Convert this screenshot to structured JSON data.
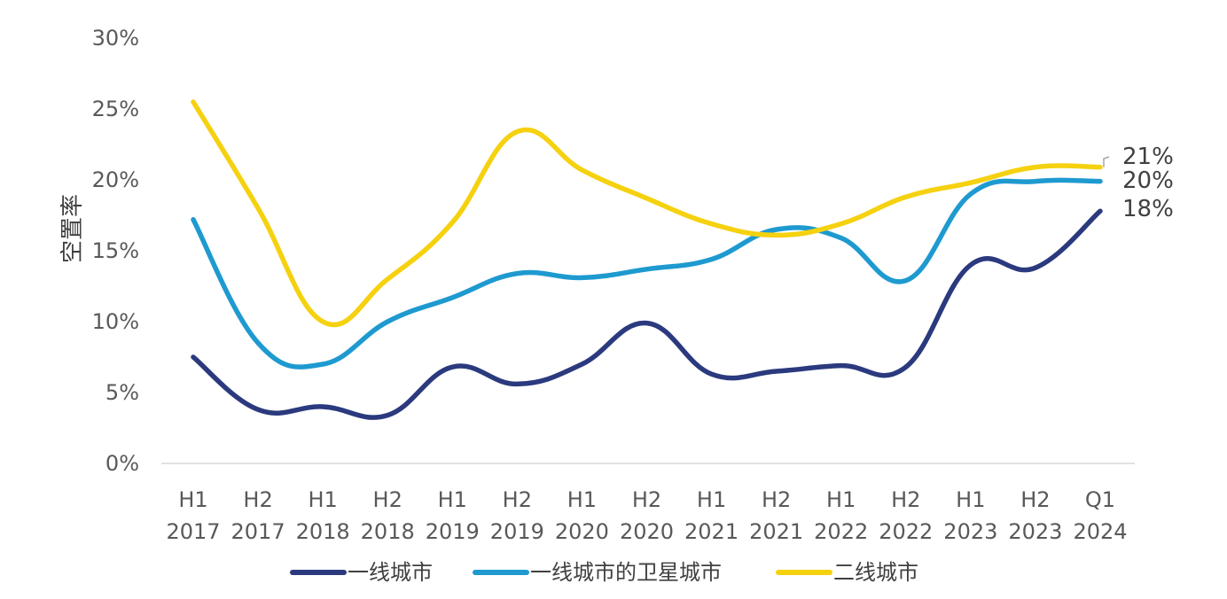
{
  "chart_data": {
    "type": "line",
    "title": "",
    "ylabel": "空置率",
    "xlabel": "",
    "ylim": [
      0,
      30
    ],
    "yticks": [
      0,
      5,
      10,
      15,
      20,
      25,
      30
    ],
    "ytick_labels": [
      "0%",
      "5%",
      "10%",
      "15%",
      "20%",
      "25%",
      "30%"
    ],
    "categories": [
      [
        "H1",
        "2017"
      ],
      [
        "H2",
        "2017"
      ],
      [
        "H1",
        "2018"
      ],
      [
        "H2",
        "2018"
      ],
      [
        "H1",
        "2019"
      ],
      [
        "H2",
        "2019"
      ],
      [
        "H1",
        "2020"
      ],
      [
        "H2",
        "2020"
      ],
      [
        "H1",
        "2021"
      ],
      [
        "H2",
        "2021"
      ],
      [
        "H1",
        "2022"
      ],
      [
        "H2",
        "2022"
      ],
      [
        "H1",
        "2023"
      ],
      [
        "H2",
        "2023"
      ],
      [
        "Q1",
        "2024"
      ]
    ],
    "series": [
      {
        "name": "一线城市",
        "color": "#2B3A7E",
        "values": [
          7.5,
          3.8,
          4.0,
          3.4,
          6.8,
          5.6,
          7.0,
          9.9,
          6.3,
          6.5,
          6.9,
          6.8,
          14.0,
          13.8,
          17.8
        ],
        "end_label": "18%"
      },
      {
        "name": "一线城市的卫星城市",
        "color": "#1E9AD0",
        "values": [
          17.2,
          8.5,
          7.0,
          10.0,
          11.7,
          13.4,
          13.1,
          13.7,
          14.4,
          16.5,
          15.9,
          12.9,
          19.0,
          19.9,
          19.9
        ],
        "end_label": "20%"
      },
      {
        "name": "二线城市",
        "color": "#F5D10F",
        "values": [
          25.5,
          18.0,
          10.0,
          13.0,
          17.0,
          23.4,
          20.7,
          18.7,
          16.9,
          16.1,
          16.9,
          18.8,
          19.8,
          20.9,
          20.9
        ],
        "end_label": "21%"
      }
    ],
    "legend_position": "bottom",
    "grid": false
  }
}
